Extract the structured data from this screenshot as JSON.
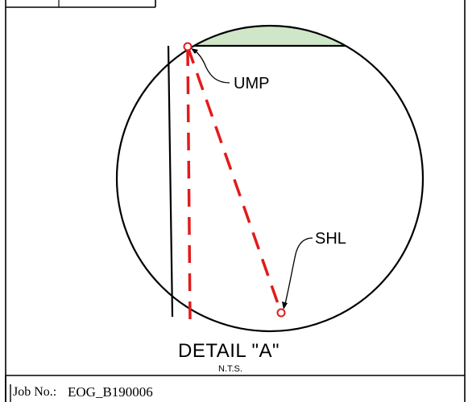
{
  "detail": {
    "title": "DETAIL \"A\"",
    "scale": "N.T.S."
  },
  "callouts": {
    "ump": "UMP",
    "shl": "SHL"
  },
  "title_block": {
    "job_label": "Job No.:",
    "job_value": "EOG_B190006"
  },
  "colors": {
    "line": "#000000",
    "well_path": "#e21b1b",
    "highlight": "#cfe6c8"
  },
  "icons": {
    "ump_marker": "circle-marker",
    "shl_marker": "circle-marker"
  }
}
